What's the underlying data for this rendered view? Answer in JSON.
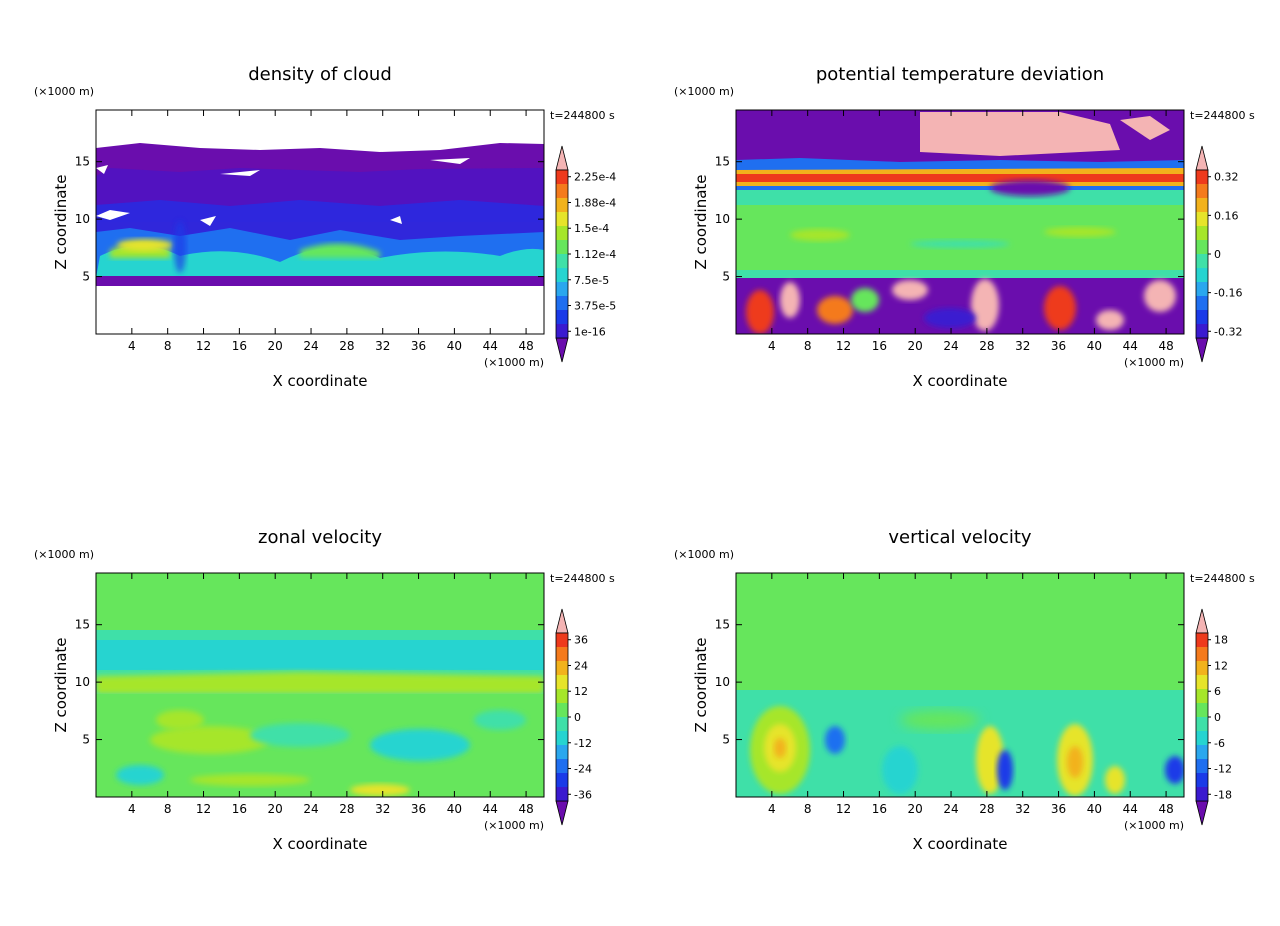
{
  "chart_data": [
    {
      "type": "heatmap",
      "title": "density of cloud",
      "xlabel": "X coordinate",
      "ylabel": "Z coordinate",
      "x_unit": "(×1000 m)",
      "y_unit": "(×1000 m)",
      "time_label": "t=244800 s",
      "xlim": [
        0,
        50
      ],
      "ylim": [
        0,
        19.5
      ],
      "x_ticks": [
        "4",
        "8",
        "12",
        "16",
        "20",
        "24",
        "28",
        "32",
        "36",
        "40",
        "44",
        "48"
      ],
      "y_ticks": [
        "5",
        "10",
        "15"
      ],
      "colorbar_labels": [
        "1e-16",
        "3.75e-5",
        "7.5e-5",
        "1.12e-4",
        "1.5e-4",
        "1.88e-4",
        "2.25e-4"
      ],
      "colors": [
        "#6a0dad",
        "#3a1ad0",
        "#1a3ae8",
        "#1f6ff0",
        "#2aa7ee",
        "#26d4d0",
        "#3fe0a8",
        "#66e65c",
        "#a6e62a",
        "#e6e42a",
        "#f2b21c",
        "#f47a1c",
        "#ee3a1c",
        "#f4b4b4"
      ]
    },
    {
      "type": "heatmap",
      "title": "potential temperature deviation",
      "xlabel": "X coordinate",
      "ylabel": "Z coordinate",
      "x_unit": "(×1000 m)",
      "y_unit": "(×1000 m)",
      "time_label": "t=244800 s",
      "xlim": [
        0,
        50
      ],
      "ylim": [
        0,
        19.5
      ],
      "x_ticks": [
        "4",
        "8",
        "12",
        "16",
        "20",
        "24",
        "28",
        "32",
        "36",
        "40",
        "44",
        "48"
      ],
      "y_ticks": [
        "5",
        "10",
        "15"
      ],
      "colorbar_labels": [
        "-0.32",
        "-0.16",
        "0",
        "0.16",
        "0.32"
      ],
      "colors": [
        "#6a0dad",
        "#3a1ad0",
        "#1a3ae8",
        "#1f6ff0",
        "#2aa7ee",
        "#26d4d0",
        "#3fe0a8",
        "#66e65c",
        "#a6e62a",
        "#e6e42a",
        "#f2b21c",
        "#f47a1c",
        "#ee3a1c",
        "#f4b4b4"
      ]
    },
    {
      "type": "heatmap",
      "title": "zonal velocity",
      "xlabel": "X coordinate",
      "ylabel": "Z coordinate",
      "x_unit": "(×1000 m)",
      "y_unit": "(×1000 m)",
      "time_label": "t=244800 s",
      "xlim": [
        0,
        50
      ],
      "ylim": [
        0,
        19.5
      ],
      "x_ticks": [
        "4",
        "8",
        "12",
        "16",
        "20",
        "24",
        "28",
        "32",
        "36",
        "40",
        "44",
        "48"
      ],
      "y_ticks": [
        "5",
        "10",
        "15"
      ],
      "colorbar_labels": [
        "-36",
        "-24",
        "-12",
        "0",
        "12",
        "24",
        "36"
      ],
      "colors": [
        "#6a0dad",
        "#3a1ad0",
        "#1a3ae8",
        "#1f6ff0",
        "#2aa7ee",
        "#26d4d0",
        "#3fe0a8",
        "#66e65c",
        "#a6e62a",
        "#e6e42a",
        "#f2b21c",
        "#f47a1c",
        "#ee3a1c",
        "#f4b4b4"
      ]
    },
    {
      "type": "heatmap",
      "title": "vertical velocity",
      "xlabel": "X coordinate",
      "ylabel": "Z coordinate",
      "x_unit": "(×1000 m)",
      "y_unit": "(×1000 m)",
      "time_label": "t=244800 s",
      "xlim": [
        0,
        50
      ],
      "ylim": [
        0,
        19.5
      ],
      "x_ticks": [
        "4",
        "8",
        "12",
        "16",
        "20",
        "24",
        "28",
        "32",
        "36",
        "40",
        "44",
        "48"
      ],
      "y_ticks": [
        "5",
        "10",
        "15"
      ],
      "colorbar_labels": [
        "-18",
        "-12",
        "-6",
        "0",
        "6",
        "12",
        "18"
      ],
      "colors": [
        "#6a0dad",
        "#3a1ad0",
        "#1a3ae8",
        "#1f6ff0",
        "#2aa7ee",
        "#26d4d0",
        "#3fe0a8",
        "#66e65c",
        "#a6e62a",
        "#e6e42a",
        "#f2b21c",
        "#f47a1c",
        "#ee3a1c",
        "#f4b4b4"
      ]
    }
  ]
}
